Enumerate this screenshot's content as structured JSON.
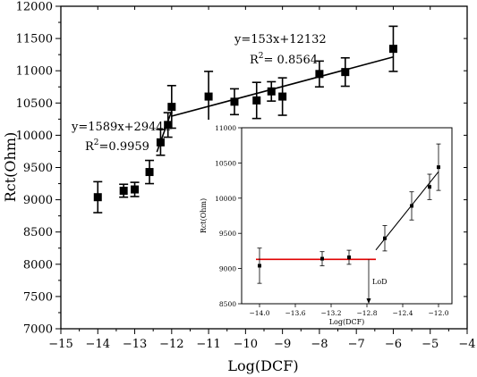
{
  "chart_data": [
    {
      "type": "scatter",
      "xlabel": "Log(DCF)",
      "ylabel": "Rct(Ohm)",
      "xlim": [
        -15,
        -4
      ],
      "ylim": [
        7000,
        12000
      ],
      "x_ticks": [
        "-15",
        "-14",
        "-13",
        "-12",
        "-11",
        "-10",
        "-9",
        "-8",
        "-7",
        "-6",
        "-5",
        "-4"
      ],
      "y_ticks": [
        "7000",
        "7500",
        "8000",
        "8500",
        "9000",
        "9500",
        "10000",
        "10500",
        "11000",
        "11500",
        "12000"
      ],
      "series": [
        {
          "marker": "square",
          "points": [
            {
              "x": -14.0,
              "y": 9040,
              "err": 240
            },
            {
              "x": -13.3,
              "y": 9140,
              "err": 100
            },
            {
              "x": -13.0,
              "y": 9160,
              "err": 110
            },
            {
              "x": -12.6,
              "y": 9430,
              "err": 180
            },
            {
              "x": -12.3,
              "y": 9890,
              "err": 200
            },
            {
              "x": -12.1,
              "y": 10160,
              "err": 190
            },
            {
              "x": -12.0,
              "y": 10440,
              "err": 330
            },
            {
              "x": -11.0,
              "y": 10600,
              "err": 390
            },
            {
              "x": -10.3,
              "y": 10520,
              "err": 200
            },
            {
              "x": -9.7,
              "y": 10540,
              "err": 280
            },
            {
              "x": -9.3,
              "y": 10680,
              "err": 150
            },
            {
              "x": -9.0,
              "y": 10600,
              "err": 290
            },
            {
              "x": -8.0,
              "y": 10950,
              "err": 200
            },
            {
              "x": -7.3,
              "y": 10980,
              "err": 220
            },
            {
              "x": -6.0,
              "y": 11340,
              "err": 350
            }
          ]
        }
      ],
      "fit_lines": [
        {
          "slope": 1589,
          "intercept": 29444,
          "x_range": [
            -12.4,
            -12.0
          ]
        },
        {
          "slope": 153,
          "intercept": 12132,
          "x_range": [
            -12.0,
            -6.0
          ]
        }
      ],
      "annotations": {
        "fit1_equation": "y=1589x+29444",
        "fit1_r2_prefix": "R",
        "fit1_r2_sup": "2",
        "fit1_r2_value": "=0.9959",
        "fit2_equation": "y=153x+12132",
        "fit2_r2_prefix": "R",
        "fit2_r2_sup": "2",
        "fit2_r2_value": "= 0.8564"
      }
    },
    {
      "type": "scatter",
      "xlabel": "Log(DCF)",
      "ylabel": "Rct(Ohm)",
      "xlim": [
        -14.2,
        -11.85
      ],
      "ylim": [
        8500,
        11000
      ],
      "x_ticks": [
        {
          "v": -14.0,
          "label": "-14.0"
        },
        {
          "v": -13.6,
          "label": "-13.6"
        },
        {
          "v": -13.2,
          "label": "-13.2"
        },
        {
          "v": -12.8,
          "label": "-12.8"
        },
        {
          "v": -12.4,
          "label": "-12.4"
        },
        {
          "v": -12.0,
          "label": "-12.0"
        }
      ],
      "y_ticks": [
        {
          "v": 8500,
          "label": "8500"
        },
        {
          "v": 9000,
          "label": "9000"
        },
        {
          "v": 9500,
          "label": "9500"
        },
        {
          "v": 10000,
          "label": "10000"
        },
        {
          "v": 10500,
          "label": "10500"
        },
        {
          "v": 11000,
          "label": "11000"
        }
      ],
      "points": [
        {
          "x": -14.0,
          "y": 9040,
          "err": 250
        },
        {
          "x": -13.3,
          "y": 9140,
          "err": 100
        },
        {
          "x": -13.0,
          "y": 9160,
          "err": 100
        },
        {
          "x": -12.6,
          "y": 9430,
          "err": 180
        },
        {
          "x": -12.3,
          "y": 9890,
          "err": 200
        },
        {
          "x": -12.1,
          "y": 10160,
          "err": 180
        },
        {
          "x": -12.0,
          "y": 10440,
          "err": 330
        }
      ],
      "baseline": {
        "y": 9130,
        "x_range": [
          -14.0,
          -12.7
        ],
        "color": "#e00000"
      },
      "fit_line": {
        "slope": 1589,
        "intercept": 29444,
        "x_range": [
          -12.7,
          -12.0
        ]
      },
      "lod_marker": {
        "x": -12.78,
        "label": "LoD"
      }
    }
  ]
}
